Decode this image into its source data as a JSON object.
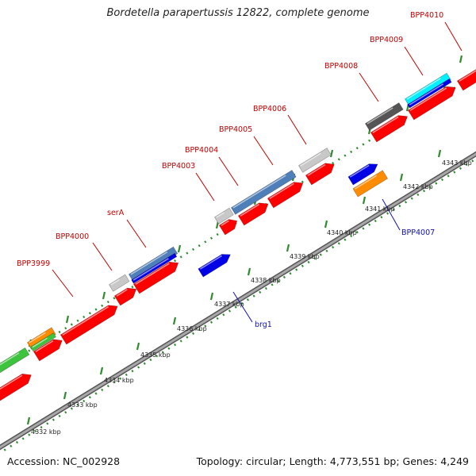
{
  "header": {
    "title": "Bordetella parapertussis 12822, complete genome"
  },
  "footer": {
    "accession": "Accession: NC_002928",
    "summary": "Topology: circular; Length: 4,773,551 bp; Genes: 4,249"
  },
  "scale": {
    "ticks": [
      "4332 kbp",
      "4333 kbp",
      "4334 kbp",
      "4335 kbp",
      "4336 kbp",
      "4337 kbp",
      "4338 kbp",
      "4339 kbp",
      "4340 kbp",
      "4341 kbp",
      "4342 kbp",
      "4343 kbp"
    ]
  },
  "gene_labels": {
    "BPP3999": "BPP3999",
    "BPP4000": "BPP4000",
    "serA": "serA",
    "BPP4003": "BPP4003",
    "BPP4004": "BPP4004",
    "BPP4005": "BPP4005",
    "BPP4006": "BPP4006",
    "BPP4008": "BPP4008",
    "BPP4009": "BPP4009",
    "BPP4010": "BPP4010",
    "BPP4007": "BPP4007",
    "brg1": "brg1"
  },
  "colors": {
    "gene": "#ff0000",
    "backbone": "#8c8c8c",
    "tick_green": "#2e8b2e",
    "blue": "#0000e6",
    "steelblue": "#4f7fb8",
    "orange": "#ff8c00",
    "grey": "#c8c8c8",
    "darkgrey": "#555555",
    "cyan": "#00f0ff",
    "green": "#3ec33e",
    "label_red": "#c00000",
    "label_blue": "#1010b0"
  }
}
